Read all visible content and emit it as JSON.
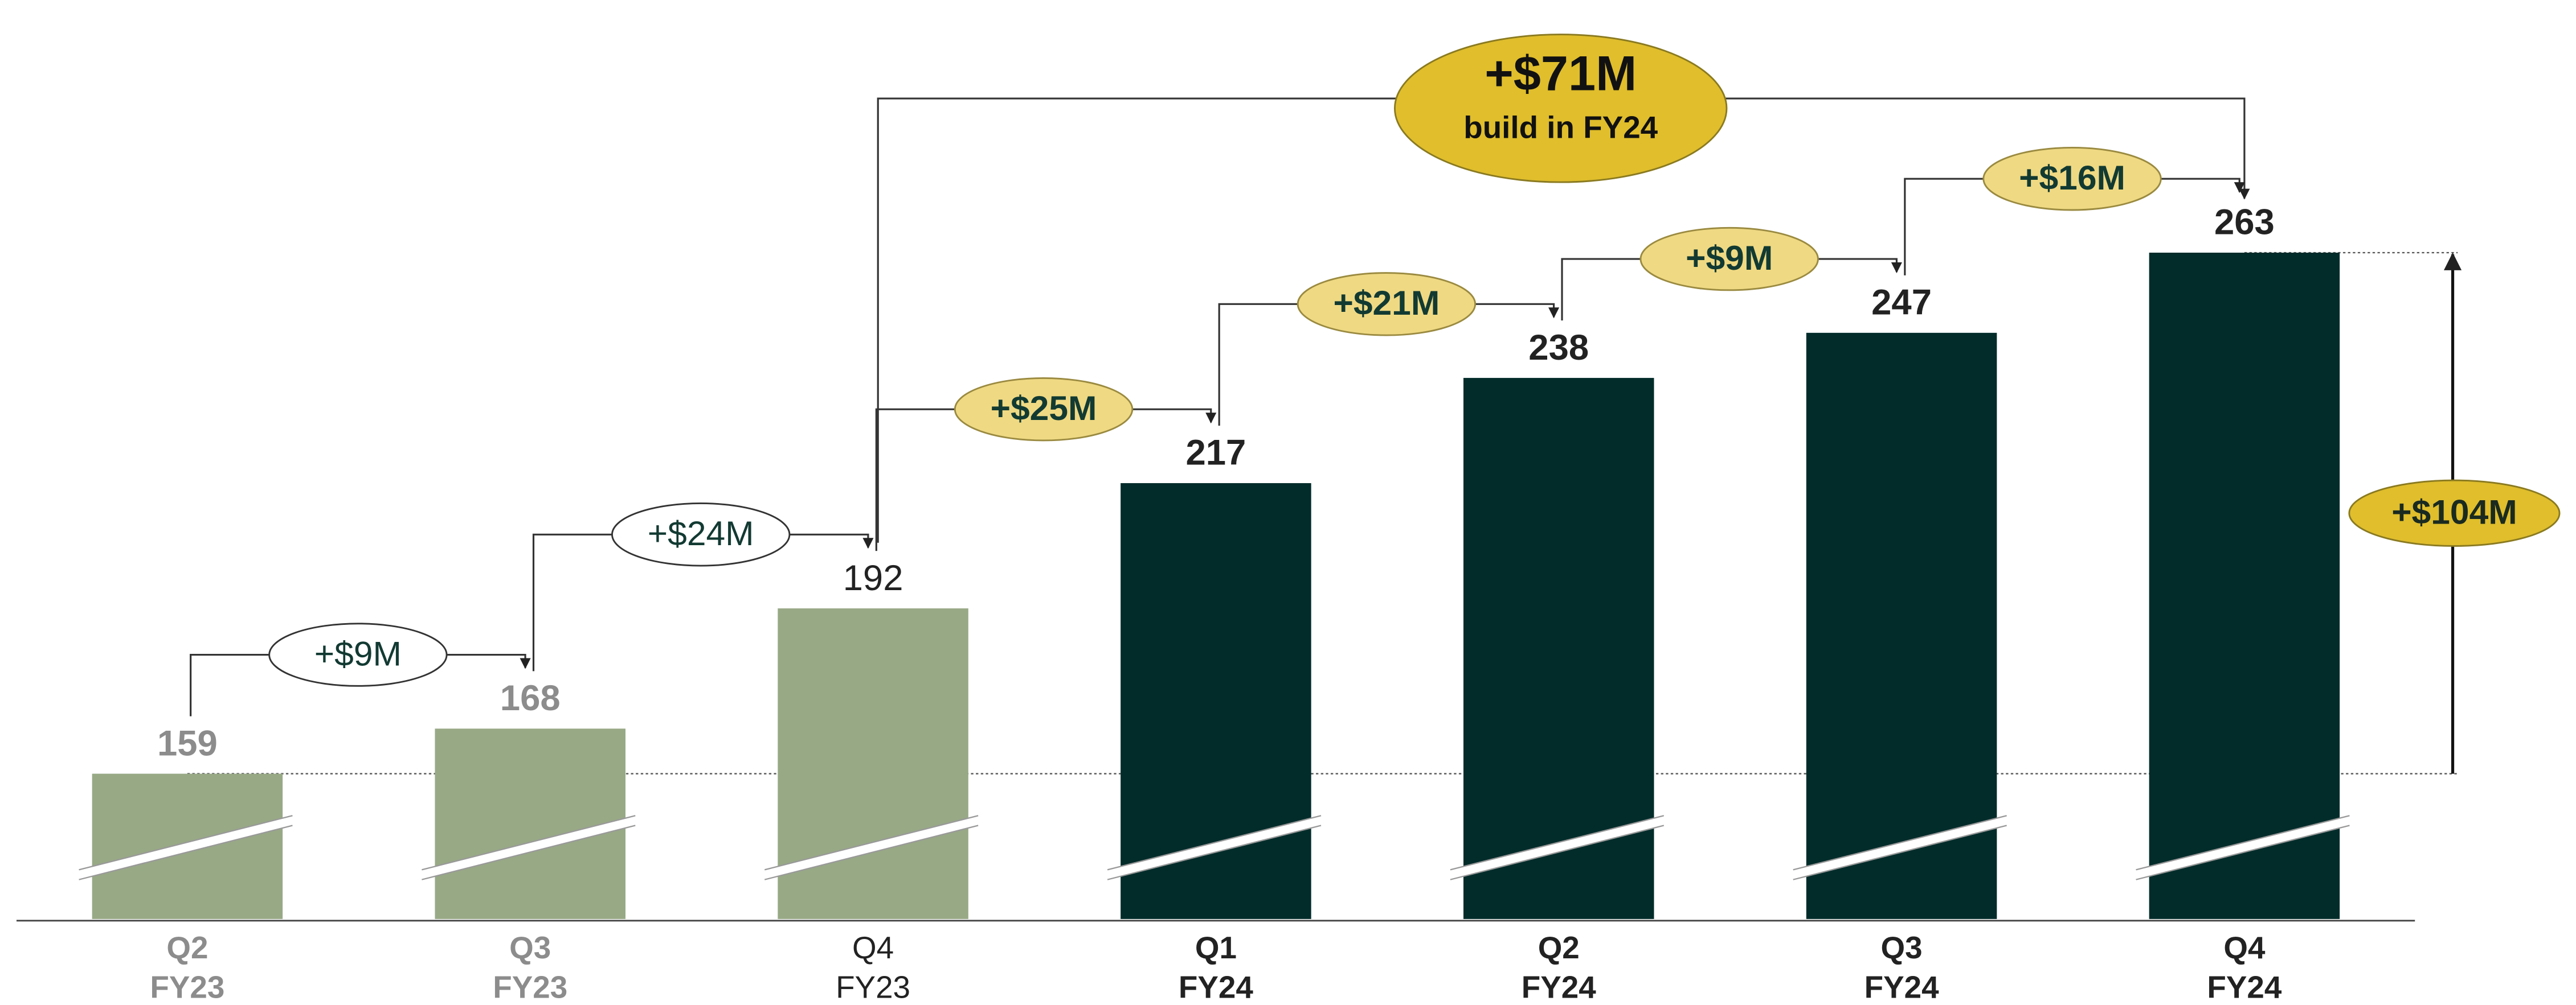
{
  "chart_data": {
    "type": "bar",
    "categories": [
      [
        "Q2",
        "FY23"
      ],
      [
        "Q3",
        "FY23"
      ],
      [
        "Q4",
        "FY23"
      ],
      [
        "Q1",
        "FY24"
      ],
      [
        "Q2",
        "FY24"
      ],
      [
        "Q3",
        "FY24"
      ],
      [
        "Q4",
        "FY24"
      ]
    ],
    "values": [
      159,
      168,
      192,
      217,
      238,
      247,
      263
    ],
    "colors": [
      "#98a986",
      "#98a986",
      "#98a986",
      "#022c2a",
      "#022c2a",
      "#022c2a",
      "#022c2a"
    ],
    "label_colors": [
      "#8c8c8c",
      "#8c8c8c",
      "#222222",
      "#222222",
      "#222222",
      "#222222",
      "#222222"
    ],
    "label_weights": [
      "bold",
      "bold",
      "normal",
      "bold",
      "bold",
      "bold",
      "bold"
    ],
    "ylim": [
      130,
      300
    ],
    "axis_break": true,
    "changes": {
      "values": [
        9,
        24,
        25,
        21,
        9,
        16
      ],
      "value_labels": [
        "+$9M",
        "+$24M",
        "+$25M",
        "+$21M",
        "+$9M",
        "+$16M"
      ],
      "colors": [
        "#ffffff",
        "#ffffff",
        "#efd983",
        "#efd983",
        "#efd983",
        "#efd983"
      ]
    },
    "fy24_build": {
      "value": 71,
      "label": "+$71M",
      "text": "build in FY24",
      "color": "#e0be2c"
    },
    "total_change": {
      "value": 104,
      "label": "+$104M",
      "color": "#e0be2c"
    }
  }
}
